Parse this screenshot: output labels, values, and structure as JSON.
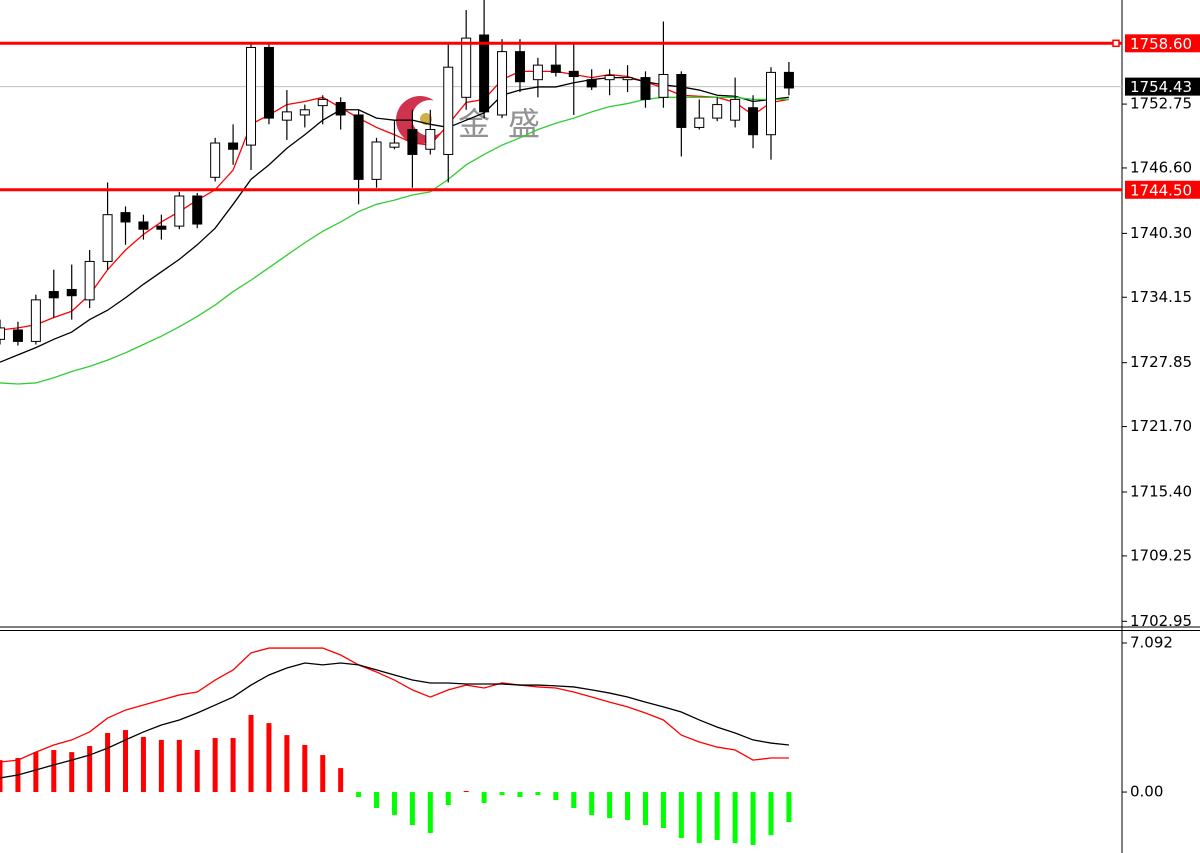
{
  "chart_data": [
    {
      "type": "candlestick",
      "open": [
        1730.1,
        1731.0,
        1729.9,
        1734.7,
        1734.9,
        1733.9,
        1737.6,
        1742.3,
        1741.4,
        1741.0,
        1741.0,
        1743.9,
        1745.7,
        1749.0,
        1748.8,
        1758.2,
        1751.2,
        1751.7,
        1752.6,
        1752.9,
        1751.7,
        1745.5,
        1748.6,
        1750.3,
        1748.4,
        1747.9,
        1753.4,
        1759.4,
        1751.7,
        1757.8,
        1755.1,
        1756.5,
        1755.9,
        1755.1,
        1755.1,
        1755.1,
        1755.3,
        1753.4,
        1755.6,
        1750.5,
        1751.4,
        1751.2,
        1752.4,
        1749.8,
        1755.8
      ],
      "high": [
        1732.0,
        1731.8,
        1734.4,
        1736.8,
        1737.3,
        1738.7,
        1745.2,
        1742.9,
        1742.1,
        1742.1,
        1744.3,
        1744.2,
        1749.5,
        1750.8,
        1758.5,
        1758.5,
        1754.1,
        1752.7,
        1753.6,
        1753.4,
        1752.2,
        1749.5,
        1751.2,
        1752.2,
        1752.2,
        1758.5,
        1761.8,
        1762.8,
        1759.0,
        1759.0,
        1757.2,
        1758.5,
        1758.5,
        1756.1,
        1756.1,
        1756.5,
        1755.9,
        1760.7,
        1755.9,
        1753.2,
        1753.4,
        1755.3,
        1753.6,
        1756.3,
        1756.8
      ],
      "low": [
        1729.6,
        1729.5,
        1729.6,
        1732.2,
        1732.0,
        1733.1,
        1736.8,
        1739.2,
        1739.7,
        1739.7,
        1740.7,
        1740.8,
        1745.3,
        1746.9,
        1746.4,
        1750.8,
        1749.3,
        1750.5,
        1750.8,
        1750.3,
        1743.1,
        1744.7,
        1748.4,
        1744.7,
        1747.9,
        1745.2,
        1752.2,
        1751.4,
        1751.4,
        1753.9,
        1753.4,
        1755.4,
        1751.7,
        1754.1,
        1753.6,
        1753.9,
        1752.4,
        1752.4,
        1747.7,
        1750.3,
        1751.1,
        1750.5,
        1748.5,
        1747.4,
        1753.6
      ],
      "close": [
        1731.2,
        1729.9,
        1733.9,
        1734.1,
        1734.3,
        1737.6,
        1742.1,
        1741.4,
        1740.7,
        1740.7,
        1743.9,
        1741.2,
        1749.0,
        1748.4,
        1758.2,
        1751.4,
        1752.0,
        1752.2,
        1753.2,
        1751.7,
        1745.5,
        1749.1,
        1749.0,
        1747.9,
        1750.3,
        1756.3,
        1759.1,
        1752.0,
        1757.8,
        1754.9,
        1756.5,
        1755.8,
        1755.4,
        1754.4,
        1755.5,
        1755.3,
        1753.2,
        1755.6,
        1750.5,
        1751.4,
        1752.7,
        1753.2,
        1749.8,
        1755.8,
        1754.3
      ],
      "up_color": "#ffffff",
      "down_color": "#000000",
      "lines": [
        {
          "color": "#ff0000",
          "values": [
            1731.0,
            1731.2,
            1731.5,
            1732.2,
            1732.8,
            1734.4,
            1736.8,
            1738.7,
            1740.2,
            1741.4,
            1742.4,
            1743.5,
            1744.5,
            1746.4,
            1750.8,
            1751.7,
            1752.7,
            1753.0,
            1753.4,
            1752.4,
            1751.4,
            1750.5,
            1749.8,
            1749.0,
            1748.8,
            1750.8,
            1752.9,
            1753.2,
            1755.1,
            1755.9,
            1755.9,
            1755.9,
            1755.6,
            1755.3,
            1755.6,
            1755.4,
            1754.9,
            1754.3,
            1753.6,
            1753.5,
            1753.4,
            1752.9,
            1751.7,
            1752.9,
            1753.2
          ]
        },
        {
          "color": "#000000",
          "values": [
            1727.9,
            1728.6,
            1729.3,
            1730.1,
            1730.8,
            1732.0,
            1732.9,
            1734.1,
            1735.4,
            1736.6,
            1737.8,
            1739.2,
            1740.8,
            1743.1,
            1745.5,
            1746.9,
            1748.5,
            1749.8,
            1751.2,
            1752.2,
            1752.2,
            1751.4,
            1751.2,
            1751.2,
            1750.8,
            1750.5,
            1751.2,
            1751.9,
            1753.6,
            1754.1,
            1754.4,
            1754.4,
            1754.8,
            1755.1,
            1755.3,
            1755.3,
            1754.9,
            1754.6,
            1754.4,
            1754.1,
            1753.6,
            1753.5,
            1753.0,
            1753.2,
            1753.4
          ]
        },
        {
          "color": "#32cd32",
          "values": [
            1725.9,
            1725.8,
            1725.9,
            1726.4,
            1727.0,
            1727.5,
            1728.1,
            1728.8,
            1729.6,
            1730.4,
            1731.3,
            1732.3,
            1733.4,
            1734.7,
            1735.8,
            1737.0,
            1738.2,
            1739.4,
            1740.5,
            1741.4,
            1742.4,
            1743.1,
            1743.5,
            1744.0,
            1744.3,
            1745.5,
            1746.9,
            1747.9,
            1748.8,
            1749.5,
            1750.3,
            1750.9,
            1751.4,
            1752.0,
            1752.5,
            1752.8,
            1753.2,
            1753.4,
            1753.4,
            1753.4,
            1753.4,
            1753.4,
            1753.2,
            1753.2,
            1753.2
          ]
        }
      ],
      "levels": [
        {
          "value": 1758.6,
          "label": "1758.60",
          "color": "#ff0000"
        },
        {
          "value": 1744.5,
          "label": "1744.50",
          "color": "#ff0000"
        }
      ],
      "current_price": {
        "value": 1754.43,
        "label": "1754.43"
      },
      "watermark": "金盛",
      "ylim": [
        1702.5,
        1762.77
      ],
      "yticks": [
        {
          "value": 1752.75,
          "label": "1752.75"
        },
        {
          "value": 1746.6,
          "label": "1746.60"
        },
        {
          "value": 1740.3,
          "label": "1740.30"
        },
        {
          "value": 1734.15,
          "label": "1734.15"
        },
        {
          "value": 1727.85,
          "label": "1727.85"
        },
        {
          "value": 1721.7,
          "label": "1721.70"
        },
        {
          "value": 1715.4,
          "label": "1715.40"
        },
        {
          "value": 1709.25,
          "label": "1709.25"
        },
        {
          "value": 1702.95,
          "label": "1702.95"
        }
      ]
    },
    {
      "type": "macd",
      "values": [
        1.52,
        1.62,
        1.9,
        2.0,
        1.9,
        2.19,
        2.81,
        2.95,
        2.62,
        2.48,
        2.48,
        2.0,
        2.57,
        2.57,
        3.67,
        3.28,
        2.71,
        2.24,
        1.76,
        1.14,
        -0.24,
        -0.76,
        -1.09,
        -1.57,
        -1.95,
        -0.62,
        0.05,
        -0.52,
        -0.14,
        -0.24,
        -0.14,
        -0.38,
        -0.76,
        -1.09,
        -1.24,
        -1.33,
        -1.57,
        -1.71,
        -2.19,
        -2.43,
        -2.28,
        -2.43,
        -2.52,
        -2.05,
        -1.43
      ],
      "up_color": "#ff0000",
      "down_color": "#00ff00",
      "lines": [
        {
          "color": "#ff0000",
          "values": [
            1.43,
            1.52,
            1.9,
            2.24,
            2.48,
            2.86,
            3.52,
            3.9,
            4.14,
            4.38,
            4.62,
            4.76,
            5.33,
            5.81,
            6.62,
            6.85,
            6.85,
            6.85,
            6.85,
            6.52,
            6.05,
            5.71,
            5.33,
            4.86,
            4.52,
            4.86,
            5.09,
            4.95,
            5.19,
            5.09,
            5.0,
            4.95,
            4.76,
            4.52,
            4.28,
            4.05,
            3.76,
            3.43,
            2.71,
            2.38,
            2.14,
            2.0,
            1.52,
            1.62,
            1.62
          ]
        },
        {
          "color": "#000000",
          "values": [
            0.67,
            0.81,
            1.05,
            1.29,
            1.52,
            1.76,
            2.09,
            2.48,
            2.86,
            3.19,
            3.43,
            3.76,
            4.14,
            4.52,
            5.09,
            5.57,
            5.9,
            6.14,
            6.05,
            6.14,
            6.05,
            5.81,
            5.57,
            5.33,
            5.19,
            5.19,
            5.14,
            5.14,
            5.14,
            5.09,
            5.09,
            5.05,
            5.0,
            4.86,
            4.71,
            4.52,
            4.28,
            4.05,
            3.81,
            3.43,
            3.09,
            2.81,
            2.48,
            2.33,
            2.24
          ]
        }
      ],
      "ylim": [
        -2.9,
        7.71
      ],
      "yticks": [
        7.092,
        {
          "value": 0,
          "label": "0.00"
        }
      ]
    }
  ]
}
